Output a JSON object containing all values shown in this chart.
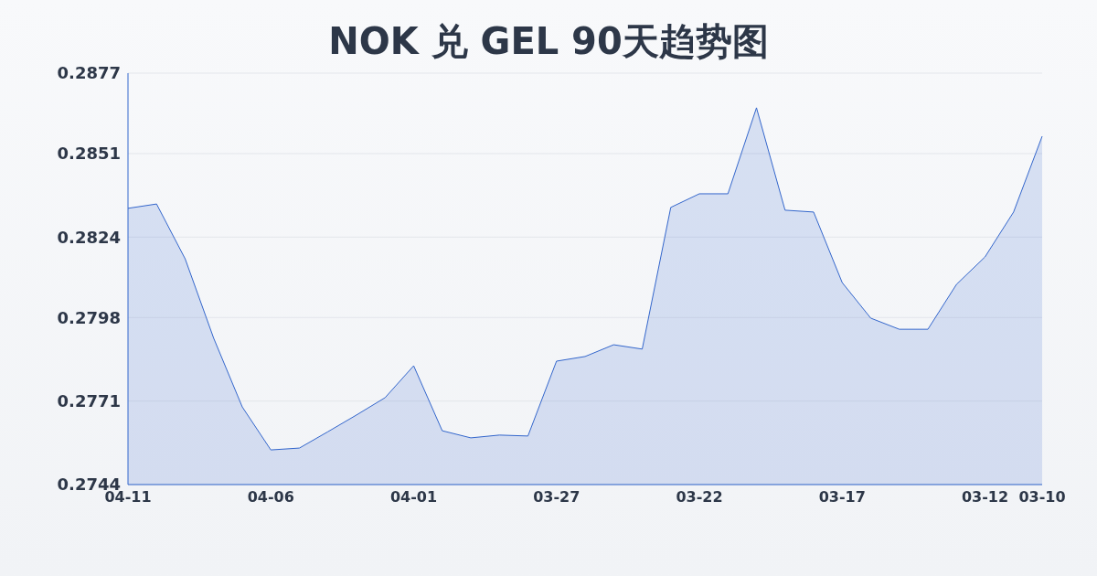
{
  "chart_data": {
    "type": "area",
    "title": "NOK 兑 GEL 90天趋势图",
    "categories": [
      "04-11",
      null,
      null,
      null,
      null,
      "04-06",
      null,
      null,
      null,
      null,
      "04-01",
      null,
      null,
      null,
      null,
      "03-27",
      null,
      null,
      null,
      null,
      "03-22",
      null,
      null,
      null,
      null,
      "03-17",
      null,
      null,
      null,
      null,
      "03-12",
      null,
      "03-10"
    ],
    "series": [
      {
        "color": "#3366cc",
        "values": [
          0.28333,
          0.28347,
          0.2817,
          0.27913,
          0.27691,
          0.27552,
          0.27558,
          0.27611,
          0.27665,
          0.27721,
          0.27824,
          0.27614,
          0.27591,
          0.276,
          0.27597,
          0.27839,
          0.27854,
          0.27892,
          0.27878,
          0.28336,
          0.2838,
          0.2838,
          0.28658,
          0.28327,
          0.28321,
          0.28093,
          0.27978,
          0.27942,
          0.27942,
          0.28087,
          0.28176,
          0.28321,
          0.28566
        ]
      }
    ],
    "ylim": [
      0.2744,
      0.2877
    ],
    "yticks": [
      0.2744,
      0.2771,
      0.2798,
      0.2824,
      0.2851,
      0.2877
    ],
    "grid": "y"
  }
}
